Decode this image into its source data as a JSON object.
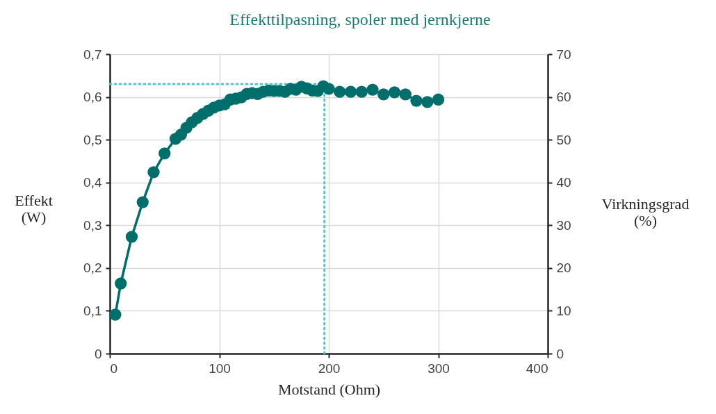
{
  "chart_data": {
    "type": "line",
    "title": "Effekttilpasning, spoler med jernkjerne",
    "xlabel": "Motstand (Ohm)",
    "ylabel": "Effekt\n(W)",
    "y2label": "Virkningsgrad\n(%)",
    "x": [
      5,
      10,
      20,
      30,
      40,
      50,
      60,
      65,
      70,
      75,
      80,
      85,
      90,
      95,
      100,
      105,
      110,
      115,
      120,
      125,
      130,
      135,
      140,
      145,
      150,
      155,
      160,
      165,
      170,
      175,
      180,
      185,
      190,
      195,
      200,
      210,
      220,
      230,
      240,
      250,
      260,
      270,
      280,
      290,
      300
    ],
    "series": [
      {
        "color": "#006f6b",
        "values": [
          0.091,
          0.164,
          0.273,
          0.354,
          0.424,
          0.468,
          0.502,
          0.512,
          0.528,
          0.541,
          0.551,
          0.56,
          0.568,
          0.575,
          0.58,
          0.583,
          0.594,
          0.596,
          0.599,
          0.607,
          0.609,
          0.607,
          0.612,
          0.615,
          0.614,
          0.614,
          0.612,
          0.619,
          0.617,
          0.624,
          0.62,
          0.615,
          0.614,
          0.625,
          0.619,
          0.612,
          0.612,
          0.612,
          0.617,
          0.606,
          0.611,
          0.606,
          0.591,
          0.588,
          0.594
        ]
      }
    ],
    "marker": "circle",
    "line_style": "solid",
    "grid": true,
    "xlim": [
      0,
      400
    ],
    "xticks": [
      0,
      100,
      200,
      300,
      400
    ],
    "ylim": [
      0,
      0.7
    ],
    "yticks": [
      0,
      {
        "value": 0.1,
        "label": "0,1"
      },
      {
        "value": 0.2,
        "label": "0,2"
      },
      {
        "value": 0.3,
        "label": "0,3"
      },
      {
        "value": 0.4,
        "label": "0,4"
      },
      {
        "value": 0.5,
        "label": "0,5"
      },
      {
        "value": 0.6,
        "label": "0,6"
      },
      {
        "value": 0.7,
        "label": "0,7"
      }
    ],
    "y2lim": [
      0,
      70
    ],
    "y2ticks": [
      0,
      10,
      20,
      30,
      40,
      50,
      60,
      70
    ],
    "ref_lines": [
      {
        "axis": "y",
        "value": 0.63,
        "color": "#4fc3d9",
        "line_style": "dotted"
      },
      {
        "axis": "x",
        "value": 196,
        "color": "#4fc3d9",
        "line_style": "dotted"
      }
    ]
  }
}
